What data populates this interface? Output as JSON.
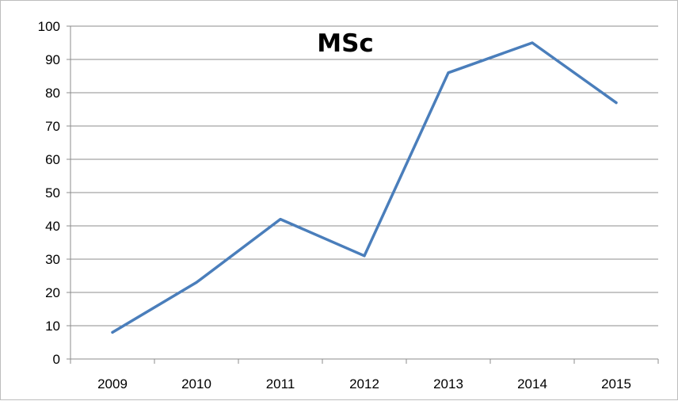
{
  "chart_data": {
    "type": "line",
    "title": "MSc",
    "categories": [
      "2009",
      "2010",
      "2011",
      "2012",
      "2013",
      "2014",
      "2015"
    ],
    "series": [
      {
        "values": [
          8,
          23,
          42,
          31,
          86,
          95,
          77
        ],
        "color": "#4a7ebb"
      }
    ],
    "ylim": [
      0,
      100
    ],
    "yticks": [
      "0",
      "10",
      "20",
      "30",
      "40",
      "50",
      "60",
      "70",
      "80",
      "90",
      "100"
    ],
    "xlabel": "",
    "ylabel": "",
    "grid": true,
    "legend": "none"
  }
}
